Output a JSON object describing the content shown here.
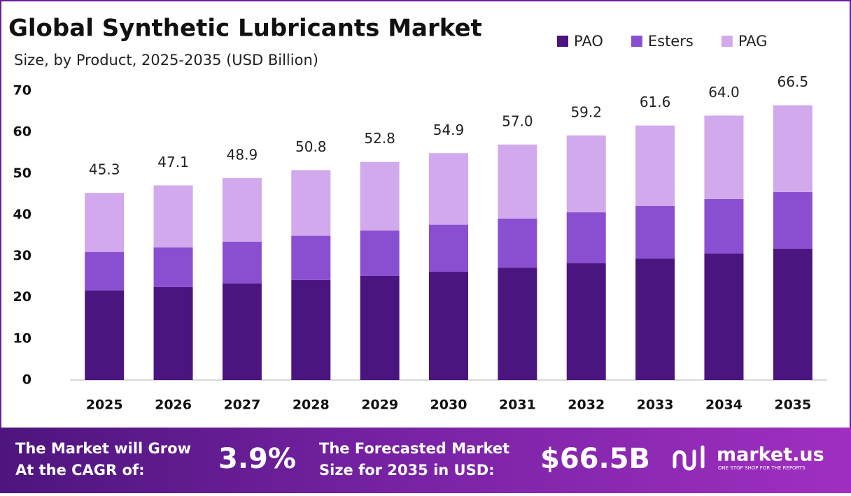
{
  "chart_data": {
    "type": "stacked_bar",
    "title": "Global Synthetic Lubricants Market",
    "subtitle": "Size, by Product, 2025-2035 (USD Billion)",
    "categories": [
      "2025",
      "2026",
      "2027",
      "2028",
      "2029",
      "2030",
      "2031",
      "2032",
      "2033",
      "2034",
      "2035"
    ],
    "series": [
      {
        "name": "PAO",
        "color": "#4b1580",
        "values": [
          21.7,
          22.5,
          23.4,
          24.2,
          25.2,
          26.2,
          27.2,
          28.3,
          29.4,
          30.6,
          31.8
        ]
      },
      {
        "name": "Esters",
        "color": "#8a4fd0",
        "values": [
          9.3,
          9.6,
          10.1,
          10.7,
          11.0,
          11.4,
          11.9,
          12.3,
          12.7,
          13.2,
          13.7
        ]
      },
      {
        "name": "PAG",
        "color": "#d1a9ec",
        "values": [
          14.3,
          15.0,
          15.4,
          15.9,
          16.6,
          17.3,
          17.9,
          18.6,
          19.5,
          20.2,
          21.0
        ]
      }
    ],
    "totals": [
      45.3,
      47.1,
      48.9,
      50.8,
      52.8,
      54.9,
      57.0,
      59.2,
      61.6,
      64.0,
      66.5
    ],
    "total_labels": [
      "45.3",
      "47.1",
      "48.9",
      "50.8",
      "52.8",
      "54.9",
      "57.0",
      "59.2",
      "61.6",
      "64.0",
      "66.5"
    ],
    "ylim": [
      0,
      70
    ],
    "yticks": [
      0,
      10,
      20,
      30,
      40,
      50,
      60,
      70
    ],
    "grid": false
  },
  "footer": {
    "cagr_label": [
      "The Market will Grow",
      "At the CAGR of:"
    ],
    "cagr": "3.9%",
    "forecast_label": [
      "The Forecasted Market",
      "Size for 2035 in USD:"
    ],
    "forecast": "$66.5B",
    "brand": "market.us",
    "tagline": "ONE STOP SHOP FOR THE REPORTS"
  }
}
